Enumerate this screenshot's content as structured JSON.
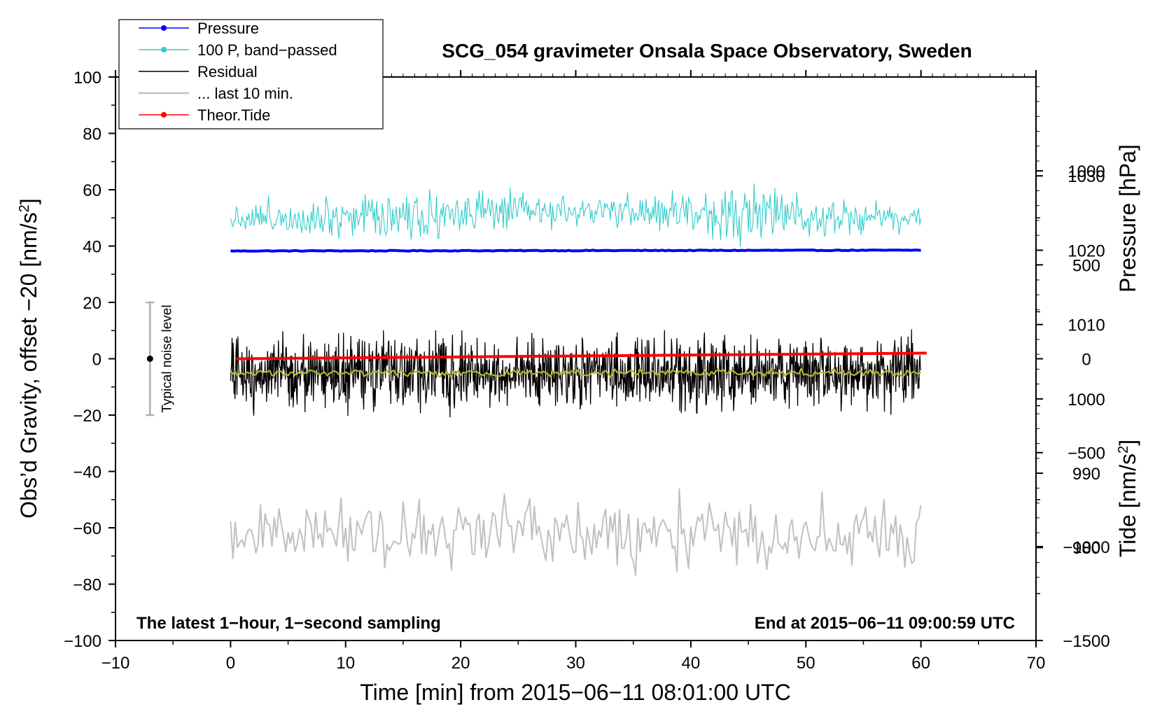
{
  "chart_data": {
    "type": "line",
    "title": "SCG_054 gravimeter Onsala Space Observatory, Sweden",
    "xlabel": "Time [min] from 2015−06−11 08:01:00 UTC",
    "ylabel_left": "Obs’d Gravity, offset −20 [nm/s",
    "ylabel_left_sup": "2",
    "ylabel_left_close": "]",
    "ylabel_pressure": "Pressure [hPa]",
    "ylabel_tide": "Tide [nm/s",
    "ylabel_tide_sup": "2",
    "ylabel_tide_close": "]",
    "note_left": "The latest 1−hour, 1−second sampling",
    "note_right": "End at 2015−06−11 09:00:59 UTC",
    "noise_label": "Typical noise level",
    "noise_bar": {
      "x": -7,
      "center": 0,
      "low": -20,
      "high": 20
    },
    "xlim": [
      -10,
      70
    ],
    "ylim": [
      -100,
      100
    ],
    "pressure_lim": [
      967.5,
      1043.3
    ],
    "tide_lim": [
      -1500,
      1500
    ],
    "x_ticks": [
      "−10",
      "0",
      "10",
      "20",
      "30",
      "40",
      "50",
      "60",
      "70"
    ],
    "x_tick_values": [
      -10,
      0,
      10,
      20,
      30,
      40,
      50,
      60,
      70
    ],
    "y_ticks": [
      "100",
      "80",
      "60",
      "40",
      "20",
      "0",
      "−20",
      "−40",
      "−60",
      "−80",
      "−100"
    ],
    "y_tick_values": [
      100,
      80,
      60,
      40,
      20,
      0,
      -20,
      -40,
      -60,
      -80,
      -100
    ],
    "pressure_ticks": [
      "1030",
      "1020",
      "1010",
      "1000",
      "990",
      "980"
    ],
    "pressure_tick_values": [
      1030,
      1020,
      1010,
      1000,
      990,
      980
    ],
    "tide_ticks": [
      "1000",
      "500",
      "0",
      "−500",
      "−1000",
      "−1500"
    ],
    "tide_tick_values": [
      1000,
      500,
      0,
      -500,
      -1000,
      -1500
    ],
    "legend": {
      "placement": "top-left",
      "entries": [
        {
          "label": "Pressure",
          "color": "#0000ff",
          "marker": true
        },
        {
          "label": "100 P, band−passed",
          "color": "#33cccc",
          "marker": true
        },
        {
          "label": "Residual",
          "color": "#000000",
          "marker": false
        },
        {
          "label": "... last 10 min.",
          "color": "#c0c0c0",
          "marker": false
        },
        {
          "label": "Theor.Tide",
          "color": "#ff0000",
          "marker": true
        }
      ]
    },
    "series": [
      {
        "name": "Pressure",
        "color": "#0000ff",
        "axis": "pressure",
        "x_range": [
          0,
          60
        ],
        "start": 1019.9,
        "end": 1020.0,
        "noise": 0.1
      },
      {
        "name": "100 P, band−passed",
        "color": "#33cccc",
        "axis": "left",
        "x_range": [
          0,
          60
        ],
        "level": 50,
        "noise": 3
      },
      {
        "name": "Residual",
        "color": "#000000",
        "axis": "left",
        "x_range": [
          0,
          60
        ],
        "level": -5,
        "noise": 6
      },
      {
        "name": "Residual smoothed",
        "color": "#b5b52a",
        "axis": "left",
        "x_range": [
          0,
          60
        ],
        "level": -5,
        "noise": 0.6
      },
      {
        "name": "... last 10 min.",
        "color": "#c0c0c0",
        "axis": "left",
        "x_range": [
          0,
          60
        ],
        "level": -62,
        "noise": 6
      },
      {
        "name": "Theor.Tide",
        "color": "#ff0000",
        "axis": "tide",
        "x_range": [
          0.5,
          60.5
        ],
        "start": 0,
        "end": 30
      }
    ]
  }
}
